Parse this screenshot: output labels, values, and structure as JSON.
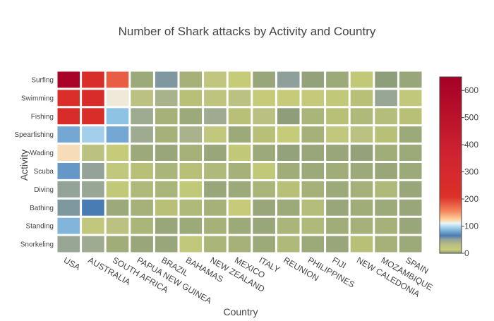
{
  "chart_data": {
    "type": "heatmap",
    "title": "Number of Shark attacks by Activity and Country",
    "xlabel": "Country",
    "ylabel": "Activity",
    "x_categories": [
      "USA",
      "AUSTRALIA",
      "SOUTH AFRICA",
      "PAPUA NEW GUINEA",
      "BRAZIL",
      "BAHAMAS",
      "NEW ZEALAND",
      "MEXICO",
      "ITALY",
      "REUNION",
      "PHILIPPINES",
      "FIJI",
      "NEW CALEDONIA",
      "MOZAMBIQUE",
      "SPAIN"
    ],
    "y_categories": [
      "Surfing",
      "Swimming",
      "Fishing",
      "Spearfishing",
      "Wading",
      "Scuba",
      "Diving",
      "Bathing",
      "Standing",
      "Snorkeling"
    ],
    "values": [
      [
        620,
        240,
        180,
        4,
        55,
        6,
        22,
        14,
        3,
        52,
        2,
        4,
        12,
        1,
        3
      ],
      [
        230,
        255,
        115,
        28,
        40,
        10,
        24,
        28,
        14,
        14,
        16,
        12,
        10,
        48,
        18
      ],
      [
        255,
        240,
        90,
        45,
        6,
        4,
        45,
        10,
        30,
        1,
        7,
        10,
        8,
        9,
        10
      ],
      [
        80,
        95,
        80,
        45,
        6,
        40,
        20,
        4,
        10,
        14,
        6,
        20,
        28,
        10,
        4
      ],
      [
        120,
        28,
        14,
        4,
        3,
        6,
        3,
        12,
        4,
        2,
        3,
        3,
        2,
        5,
        4
      ],
      [
        75,
        50,
        20,
        10,
        7,
        10,
        8,
        6,
        12,
        5,
        4,
        5,
        4,
        3,
        4
      ],
      [
        50,
        48,
        12,
        8,
        7,
        12,
        3,
        4,
        7,
        10,
        6,
        4,
        6,
        8,
        3
      ],
      [
        55,
        65,
        4,
        6,
        10,
        8,
        6,
        14,
        3,
        4,
        9,
        3,
        5,
        4,
        3
      ],
      [
        85,
        20,
        28,
        7,
        3,
        4,
        6,
        4,
        3,
        7,
        8,
        5,
        6,
        6,
        3
      ],
      [
        48,
        45,
        5,
        3,
        3,
        18,
        7,
        6,
        4,
        8,
        4,
        3,
        10,
        6,
        4
      ]
    ],
    "zlim": [
      0,
      650
    ],
    "colorbar_ticks": [
      0,
      100,
      200,
      300,
      400,
      500,
      600
    ],
    "colorscale": [
      [
        0,
        "#8a9a7a"
      ],
      [
        0.02,
        "#c6cc78"
      ],
      [
        0.05,
        "#b8be82"
      ],
      [
        0.08,
        "#8fa09a"
      ],
      [
        0.1,
        "#4a7cb4"
      ],
      [
        0.14,
        "#92c6e6"
      ],
      [
        0.17,
        "#e8f4fa"
      ],
      [
        0.19,
        "#fdd49e"
      ],
      [
        0.24,
        "#f4845c"
      ],
      [
        0.32,
        "#dc3028"
      ],
      [
        0.55,
        "#d02430"
      ],
      [
        1.0,
        "#a50026"
      ]
    ],
    "grid": false
  }
}
